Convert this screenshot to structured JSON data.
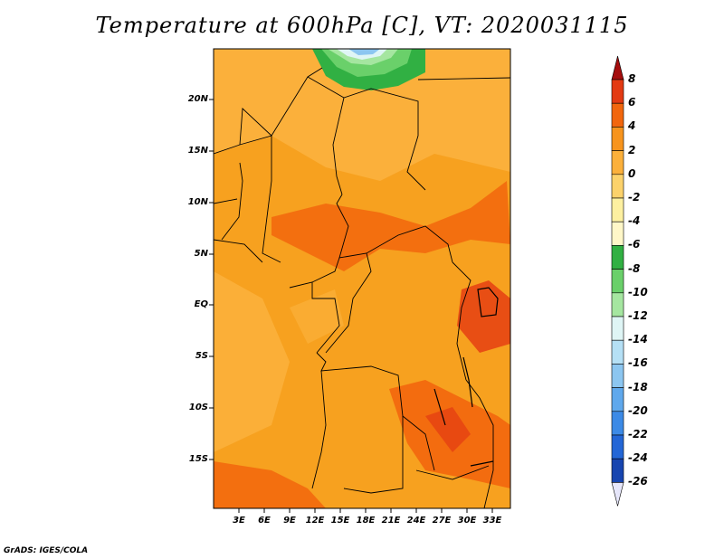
{
  "title": "Temperature at 600hPa [C], VT: 2020031115",
  "credit": "GrADS: IGES/COLA",
  "map": {
    "lat_ticks": [
      "20N",
      "15N",
      "10N",
      "5N",
      "EQ",
      "5S",
      "10S",
      "15S"
    ],
    "lon_ticks": [
      "3E",
      "6E",
      "9E",
      "12E",
      "15E",
      "18E",
      "21E",
      "24E",
      "27E",
      "30E",
      "33E"
    ]
  },
  "colorbar": {
    "labels": [
      "8",
      "6",
      "4",
      "2",
      "0",
      "-2",
      "-4",
      "-6",
      "-8",
      "-10",
      "-12",
      "-14",
      "-16",
      "-18",
      "-20",
      "-22",
      "-24",
      "-26"
    ],
    "colors": [
      "#a50d0d",
      "#e33a12",
      "#f2660d",
      "#f7941d",
      "#fbb03b",
      "#fcd26b",
      "#fdf0a0",
      "#fff7c8",
      "#31b043",
      "#6ad06a",
      "#a5e6a0",
      "#dff5f5",
      "#b5e0f5",
      "#8cc6f0",
      "#5fa8ec",
      "#3c8ae6",
      "#2366d6",
      "#1745b0",
      "#0c1f72",
      "#e6e6fa"
    ]
  }
}
